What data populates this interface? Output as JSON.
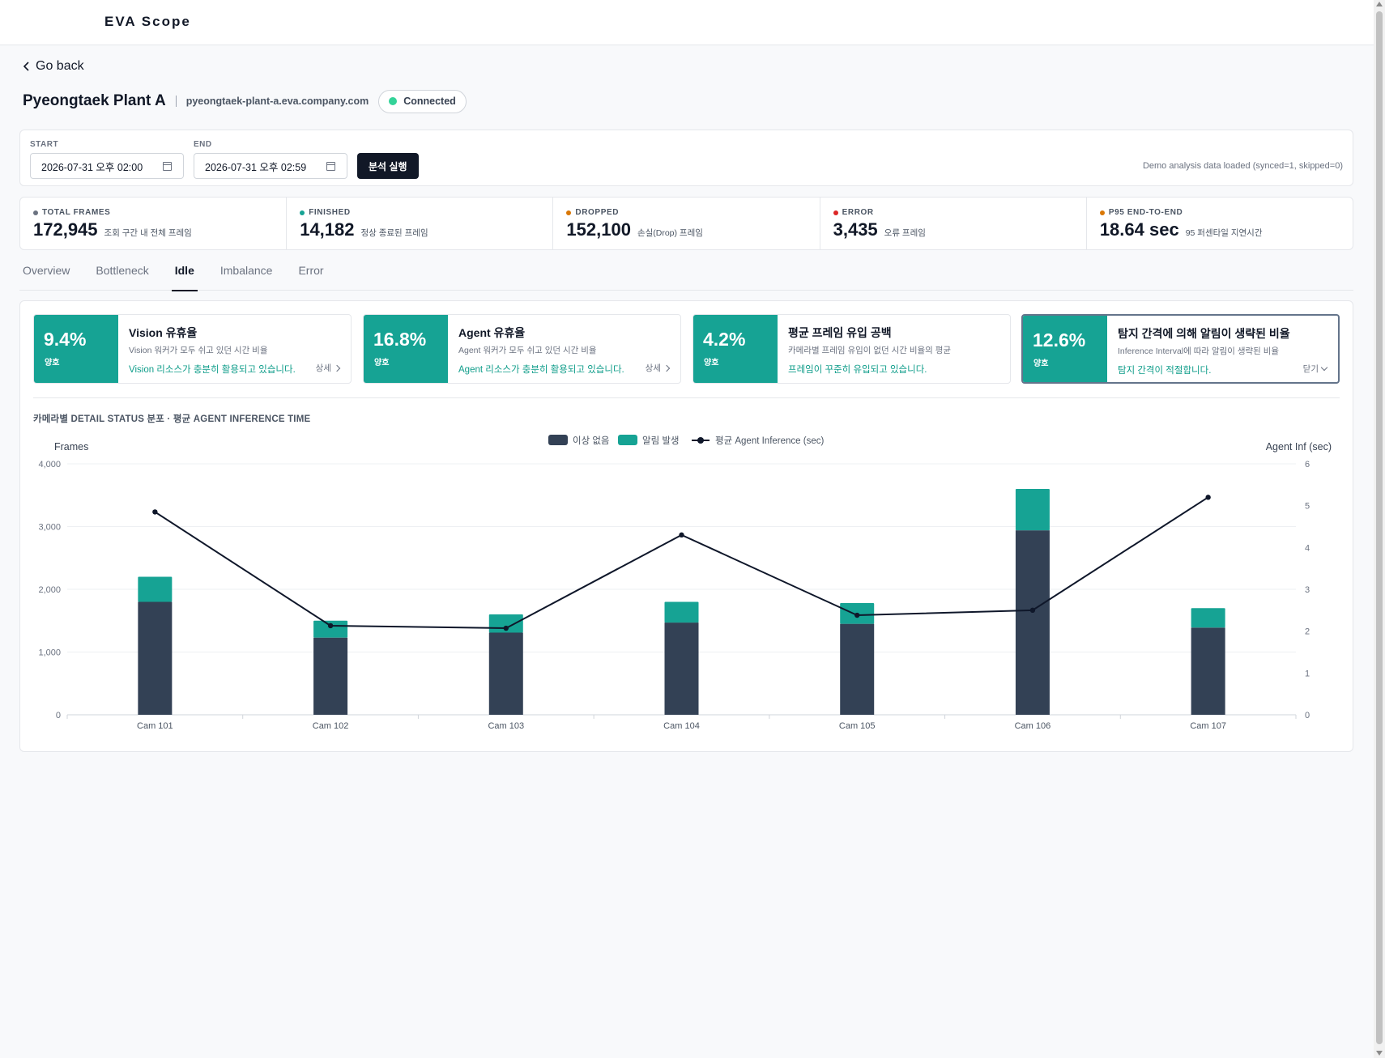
{
  "app": {
    "brand": "EVA Scope"
  },
  "nav": {
    "go_back": "Go back"
  },
  "site": {
    "name": "Pyeongtaek Plant A",
    "host": "pyeongtaek-plant-a.eva.company.com",
    "status": "Connected",
    "status_color": "#34d399"
  },
  "range": {
    "start_label": "START",
    "start_value": "2026-07-31 오후 02:00",
    "end_label": "END",
    "end_value": "2026-07-31 오후 02:59",
    "run_button": "분석 실행",
    "status_text": "Demo analysis data loaded (synced=1, skipped=0)"
  },
  "kpis": [
    {
      "label": "TOTAL FRAMES",
      "value": "172,945",
      "desc": "조회 구간 내 전체 프레임",
      "color": "#6b7280"
    },
    {
      "label": "FINISHED",
      "value": "14,182",
      "desc": "정상 종료된 프레임",
      "color": "#16a394"
    },
    {
      "label": "DROPPED",
      "value": "152,100",
      "desc": "손실(Drop) 프레임",
      "color": "#d97706"
    },
    {
      "label": "ERROR",
      "value": "3,435",
      "desc": "오류 프레임",
      "color": "#dc2626"
    },
    {
      "label": "P95 END-TO-END",
      "value": "18.64 sec",
      "desc": "95 퍼센타일 지연시간",
      "color": "#d97706"
    }
  ],
  "tabs": [
    {
      "label": "Overview",
      "active": false
    },
    {
      "label": "Bottleneck",
      "active": false
    },
    {
      "label": "Idle",
      "active": true
    },
    {
      "label": "Imbalance",
      "active": false
    },
    {
      "label": "Error",
      "active": false
    }
  ],
  "metrics": [
    {
      "pct": "9.4%",
      "grade": "양호",
      "title": "Vision 유휴율",
      "sub": "Vision 워커가 모두 쉬고 있던 시간 비율",
      "msg": "Vision 리소스가 충분히 활용되고 있습니다.",
      "link": "상세"
    },
    {
      "pct": "16.8%",
      "grade": "양호",
      "title": "Agent 유휴율",
      "sub": "Agent 워커가 모두 쉬고 있던 시간 비율",
      "msg": "Agent 리소스가 충분히 활용되고 있습니다.",
      "link": "상세"
    },
    {
      "pct": "4.2%",
      "grade": "양호",
      "title": "평균 프레임 유입 공백",
      "sub": "카메라별 프레임 유입이 없던 시간 비율의 평균",
      "msg": "프레임이 꾸준히 유입되고 있습니다.",
      "link": ""
    },
    {
      "pct": "12.6%",
      "grade": "양호",
      "title": "탐지 간격에 의해 알림이 생략된 비율",
      "sub": "Inference Interval에 따라 알림이 생략된 비율",
      "msg": "탐지 간격이 적절합니다.",
      "link": "닫기"
    }
  ],
  "chart": {
    "title": "카메라별 DETAIL STATUS 분포 · 평균 AGENT INFERENCE TIME"
  },
  "chart_data": {
    "type": "bar",
    "stacked": true,
    "categories": [
      "Cam 101",
      "Cam 102",
      "Cam 103",
      "Cam 104",
      "Cam 105",
      "Cam 106",
      "Cam 107"
    ],
    "series": [
      {
        "name": "이상 없음",
        "values": [
          1800,
          1230,
          1310,
          1470,
          1450,
          2940,
          1390
        ],
        "color": "#334155",
        "axis": "left"
      },
      {
        "name": "알림 발생",
        "values": [
          400,
          270,
          290,
          330,
          330,
          660,
          310
        ],
        "color": "#16a394",
        "axis": "left"
      },
      {
        "name": "평균 Agent Inference (sec)",
        "type": "line",
        "values": [
          4.85,
          2.13,
          2.07,
          4.3,
          2.38,
          2.5,
          5.2
        ],
        "color": "#0f172a",
        "axis": "right"
      }
    ],
    "ylabel": "Frames",
    "y2label": "Agent Inf (sec)",
    "ylim": [
      0,
      4000
    ],
    "yticks": [
      "0",
      "1,000",
      "2,000",
      "3,000",
      "4,000"
    ],
    "y2lim": [
      0,
      6
    ],
    "y2ticks": [
      "0",
      "1",
      "2",
      "3",
      "4",
      "5",
      "6"
    ],
    "grid": true,
    "legend": "top-center"
  }
}
